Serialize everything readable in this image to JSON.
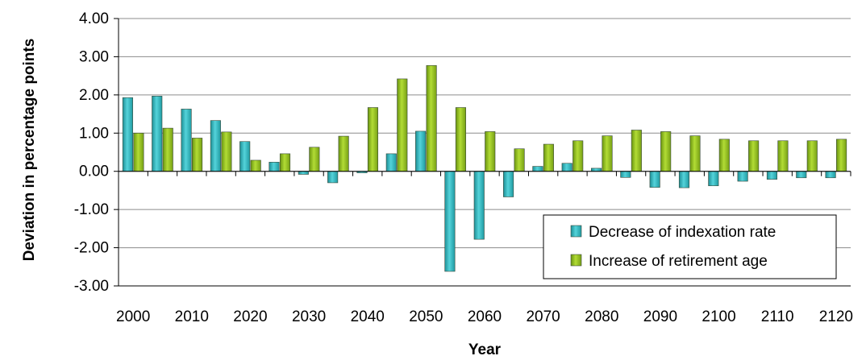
{
  "chart_data": {
    "type": "bar",
    "xlabel": "Year",
    "ylabel": "Deviation in percentage points",
    "ylim": [
      -3,
      4
    ],
    "yticks": [
      "4.00",
      "3.00",
      "2.00",
      "1.00",
      "0.00",
      "-1.00",
      "-2.00",
      "-3.00"
    ],
    "x_tick_labels": [
      "2000",
      "2010",
      "2020",
      "2030",
      "2040",
      "2050",
      "2060",
      "2070",
      "2080",
      "2090",
      "2100",
      "2110",
      "2120"
    ],
    "categories": [
      2000,
      2005,
      2010,
      2015,
      2020,
      2025,
      2030,
      2035,
      2040,
      2045,
      2050,
      2055,
      2060,
      2065,
      2070,
      2075,
      2080,
      2085,
      2090,
      2095,
      2100,
      2105,
      2110,
      2115,
      2120
    ],
    "grid": "horizontal",
    "legend_position": "bottom-right",
    "series": [
      {
        "name": "Decrease of indexation rate",
        "color": "#2fb3bb",
        "values": [
          1.93,
          1.97,
          1.63,
          1.33,
          0.78,
          0.24,
          -0.08,
          -0.3,
          -0.04,
          0.46,
          1.05,
          -2.62,
          -1.78,
          -0.67,
          0.13,
          0.21,
          0.08,
          -0.16,
          -0.42,
          -0.43,
          -0.38,
          -0.26,
          -0.21,
          -0.17,
          -0.17
        ]
      },
      {
        "name": "Increase of retirement age",
        "color": "#8dba1e",
        "values": [
          1.0,
          1.13,
          0.87,
          1.03,
          0.29,
          0.46,
          0.63,
          0.92,
          1.67,
          2.42,
          2.77,
          1.67,
          1.04,
          0.59,
          0.71,
          0.8,
          0.93,
          1.08,
          1.04,
          0.93,
          0.84,
          0.8,
          0.8,
          0.8,
          0.84
        ]
      }
    ]
  }
}
